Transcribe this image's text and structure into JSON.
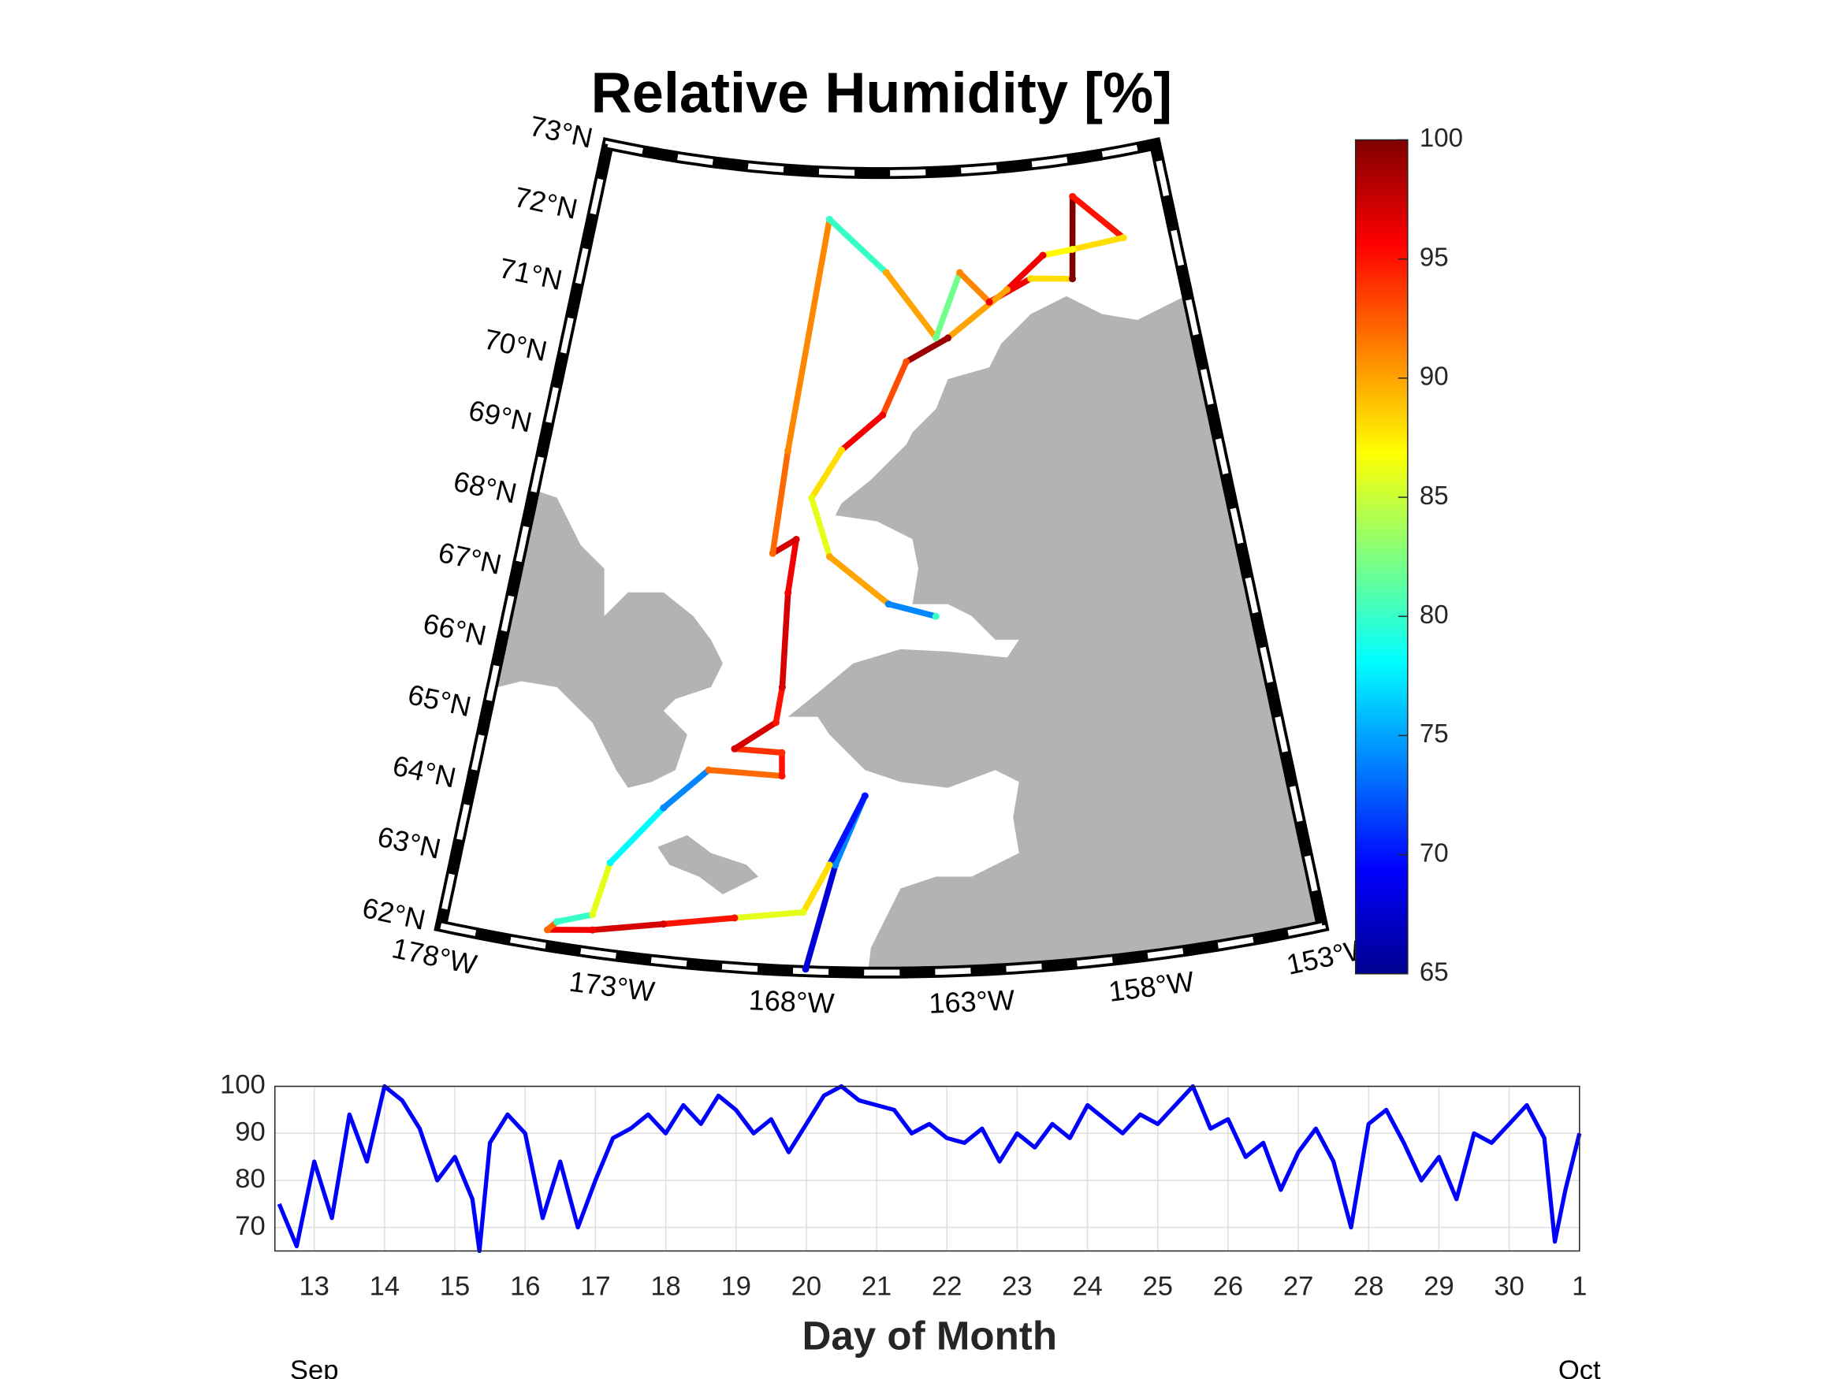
{
  "chart_data": [
    {
      "type": "map",
      "title": "Relative Humidity [%]",
      "projection": "conic",
      "lonlim": [
        -178,
        -153
      ],
      "latlim": [
        62,
        73
      ],
      "land_color": "#b3b3b3",
      "colormap": "jet",
      "clim": [
        65,
        100
      ],
      "cticks": [
        65,
        70,
        75,
        80,
        85,
        90,
        95,
        100
      ],
      "latticks": [
        {
          "value": 62,
          "label": "62°N"
        },
        {
          "value": 63,
          "label": "63°N"
        },
        {
          "value": 64,
          "label": "64°N"
        },
        {
          "value": 65,
          "label": "65°N"
        },
        {
          "value": 66,
          "label": "66°N"
        },
        {
          "value": 67,
          "label": "67°N"
        },
        {
          "value": 68,
          "label": "68°N"
        },
        {
          "value": 69,
          "label": "69°N"
        },
        {
          "value": 70,
          "label": "70°N"
        },
        {
          "value": 71,
          "label": "71°N"
        },
        {
          "value": 72,
          "label": "72°N"
        },
        {
          "value": 73,
          "label": "73°N"
        }
      ],
      "lonticks": [
        {
          "value": -178,
          "label": "178°W"
        },
        {
          "value": -173,
          "label": "173°W"
        },
        {
          "value": -168,
          "label": "168°W"
        },
        {
          "value": -163,
          "label": "163°W"
        },
        {
          "value": -158,
          "label": "158°W"
        },
        {
          "value": -153,
          "label": "153°W"
        }
      ],
      "track": {
        "lon": [
          -167.64,
          -166.87,
          -166.01,
          -167.05,
          -167.77,
          -169.74,
          -171.76,
          -173.75,
          -175.02,
          -174.79,
          -173.81,
          -173.51,
          -172.13,
          -170.87,
          -168.59,
          -168.63,
          -170.12,
          -168.87,
          -168.73,
          -168.71,
          -168.52,
          -169.32,
          -169.0,
          -167.78,
          -165.3,
          -163.31,
          -162.21,
          -161.06,
          -159.26,
          -157.54,
          -157.05,
          -155.16,
          -157.38,
          -158.65,
          -160.29,
          -162.83,
          -164.52,
          -165.46,
          -167.0,
          -168.04,
          -167.32,
          -165.26,
          -163.66
        ],
        "lat": [
          62.03,
          63.47,
          64.43,
          63.47,
          62.81,
          62.68,
          62.51,
          62.31,
          62.22,
          62.35,
          62.52,
          63.26,
          64.1,
          64.68,
          64.67,
          64.99,
          65.0,
          65.4,
          65.89,
          67.19,
          67.93,
          67.72,
          69.14,
          72.35,
          71.63,
          70.72,
          71.6,
          71.17,
          71.44,
          71.37,
          72.49,
          71.82,
          71.77,
          71.74,
          71.32,
          70.71,
          70.4,
          69.67,
          69.18,
          68.51,
          67.71,
          67.07,
          66.89
        ],
        "values": [
          68,
          74,
          70,
          88,
          86,
          95,
          97,
          96,
          92,
          80,
          86,
          78,
          74,
          92,
          95,
          94,
          97,
          95,
          97,
          96,
          97,
          92,
          91,
          80,
          90,
          82,
          91,
          96,
          88,
          100,
          95,
          88,
          87,
          96,
          90,
          99,
          93,
          96,
          88,
          86,
          90,
          74,
          80
        ]
      }
    },
    {
      "type": "line",
      "color": "#0000ff",
      "x": [
        12.5,
        12.75,
        13.0,
        13.25,
        13.5,
        13.75,
        14.0,
        14.25,
        14.5,
        14.75,
        15.0,
        15.25,
        15.35,
        15.5,
        15.75,
        16.0,
        16.25,
        16.5,
        16.75,
        17.0,
        17.25,
        17.5,
        17.75,
        18.0,
        18.25,
        18.5,
        18.75,
        19.0,
        19.25,
        19.5,
        19.75,
        20.0,
        20.25,
        20.5,
        20.75,
        21.0,
        21.25,
        21.5,
        21.75,
        22.0,
        22.25,
        22.5,
        22.75,
        23.0,
        23.25,
        23.5,
        23.75,
        24.0,
        24.25,
        24.5,
        24.75,
        25.0,
        25.25,
        25.5,
        25.75,
        26.0,
        26.25,
        26.5,
        26.75,
        27.0,
        27.25,
        27.5,
        27.75,
        28.0,
        28.25,
        28.5,
        28.75,
        29.0,
        29.25,
        29.5,
        29.75,
        30.0,
        30.25,
        30.5,
        30.65,
        30.8,
        31.0
      ],
      "values": [
        75,
        66,
        84,
        72,
        94,
        84,
        100,
        97,
        91,
        80,
        85,
        76,
        65,
        88,
        94,
        90,
        72,
        84,
        70,
        80,
        89,
        91,
        94,
        90,
        96,
        92,
        98,
        95,
        90,
        93,
        86,
        92,
        98,
        100,
        97,
        96,
        95,
        90,
        92,
        89,
        88,
        91,
        84,
        90,
        87,
        92,
        89,
        96,
        93,
        90,
        94,
        92,
        96,
        100,
        91,
        93,
        85,
        88,
        78,
        86,
        91,
        84,
        70,
        92,
        95,
        88,
        80,
        85,
        76,
        90,
        88,
        92,
        96,
        89,
        67,
        78,
        90
      ],
      "xlim": [
        12.44,
        31
      ],
      "ylim": [
        65,
        100
      ],
      "xticks": [
        13,
        14,
        15,
        16,
        17,
        18,
        19,
        20,
        21,
        22,
        23,
        24,
        25,
        26,
        27,
        28,
        29,
        30,
        {
          "value": 31,
          "label": "1"
        }
      ],
      "yticks": [
        70,
        80,
        90,
        100
      ],
      "grid": true,
      "xlabel": "Day of Month",
      "xsublabels": [
        "Sep",
        "Oct"
      ]
    }
  ]
}
